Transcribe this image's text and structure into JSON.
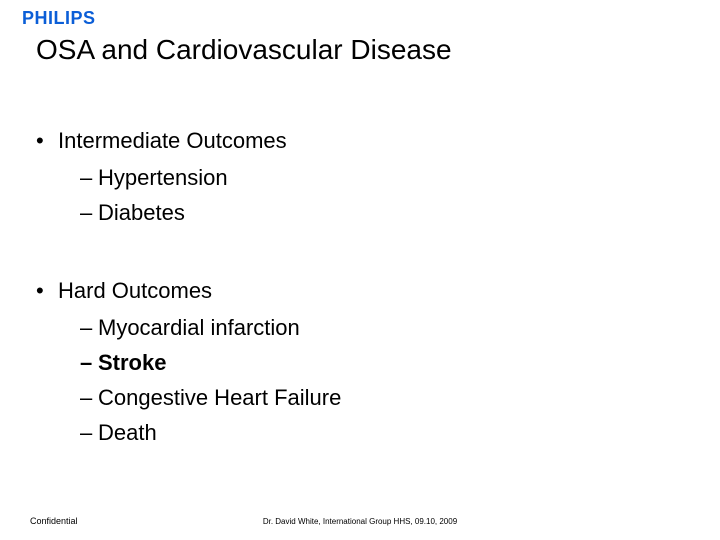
{
  "logo": {
    "text": "PHILIPS",
    "color": "#0b5ed7"
  },
  "title": "OSA and Cardiovascular Disease",
  "sections": [
    {
      "heading": "Intermediate Outcomes",
      "items": [
        {
          "text": "Hypertension",
          "bold": false
        },
        {
          "text": "Diabetes",
          "bold": false
        }
      ]
    },
    {
      "heading": "Hard Outcomes",
      "items": [
        {
          "text": "Myocardial infarction",
          "bold": false
        },
        {
          "text": "Stroke",
          "bold": true
        },
        {
          "text": "Congestive Heart Failure",
          "bold": false
        },
        {
          "text": "Death",
          "bold": false
        }
      ]
    }
  ],
  "footer": {
    "left": "Confidential",
    "center": "Dr. David White, International Group HHS, 09.10, 2009"
  }
}
